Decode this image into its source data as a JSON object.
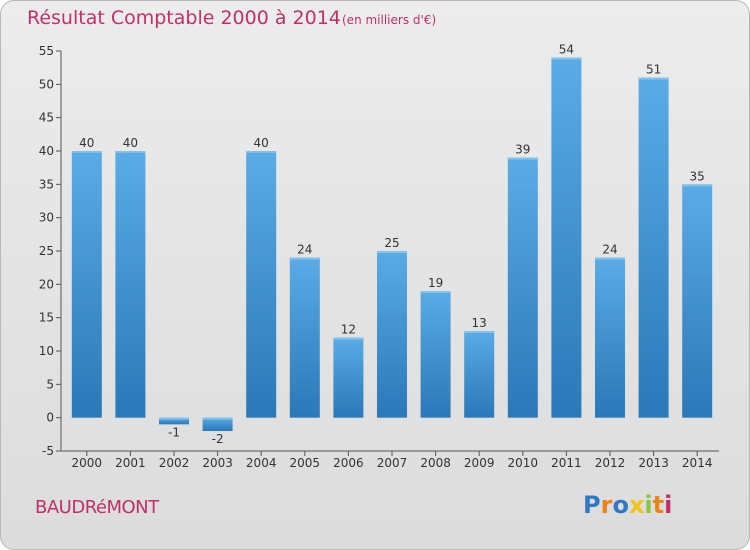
{
  "header": {
    "title": "Résultat Comptable 2000 à 2014",
    "unit": "(en milliers d'€)"
  },
  "footer": {
    "city": "BAUDRéMONT",
    "logo_letters": [
      "P",
      "r",
      "o",
      "x",
      "i",
      "t",
      "i"
    ],
    "logo_colors": [
      "#2f78c4",
      "#e8841a",
      "#2f78c4",
      "#f0c419",
      "#8cc63f",
      "#e8841a",
      "#c0306a"
    ]
  },
  "colors": {
    "bar_light": "#5aabe6",
    "bar_dark": "#2a78b8",
    "accent": "#c0306a",
    "axis": "#555555"
  },
  "chart_data": {
    "type": "bar",
    "title": "Résultat Comptable 2000 à 2014",
    "subtitle": "(en milliers d'€)",
    "categories": [
      "2000",
      "2001",
      "2002",
      "2003",
      "2004",
      "2005",
      "2006",
      "2007",
      "2008",
      "2009",
      "2010",
      "2011",
      "2012",
      "2013",
      "2014"
    ],
    "values": [
      40,
      40,
      -1,
      -2,
      40,
      24,
      12,
      25,
      19,
      13,
      39,
      54,
      24,
      51,
      35
    ],
    "ylim": [
      -5,
      55
    ],
    "yticks": [
      -5,
      0,
      5,
      10,
      15,
      20,
      25,
      30,
      35,
      40,
      45,
      50,
      55
    ],
    "xlabel": "",
    "ylabel": "",
    "grid": false,
    "legend": "none"
  }
}
